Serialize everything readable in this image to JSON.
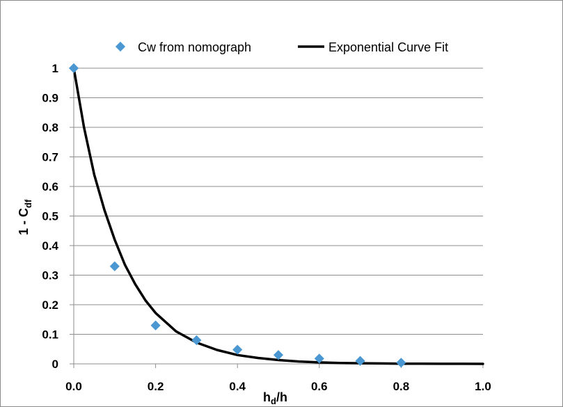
{
  "chart_data": {
    "type": "scatter",
    "title": "",
    "xlabel": {
      "main": "h",
      "sub": "d",
      "suffix": "/h"
    },
    "ylabel": {
      "main": "1 - C",
      "sub": "df"
    },
    "xlim": [
      0,
      1.0
    ],
    "ylim": [
      0,
      1
    ],
    "x_ticks": [
      "0.0",
      "0.2",
      "0.4",
      "0.6",
      "0.8",
      "1.0"
    ],
    "y_ticks": [
      "0",
      "0.1",
      "0.2",
      "0.3",
      "0.4",
      "0.5",
      "0.6",
      "0.7",
      "0.8",
      "0.9",
      "1"
    ],
    "grid": "horizontal",
    "legend": "top",
    "series": [
      {
        "name": "Cw from nomograph",
        "kind": "markers",
        "marker": "diamond",
        "color": "#4a97d2",
        "x": [
          0.0,
          0.1,
          0.2,
          0.3,
          0.4,
          0.5,
          0.6,
          0.7,
          0.8
        ],
        "y": [
          1.0,
          0.33,
          0.13,
          0.08,
          0.048,
          0.03,
          0.018,
          0.01,
          0.004
        ]
      },
      {
        "name": "Exponential Curve Fit",
        "kind": "line",
        "color": "#000000",
        "x": [
          0.0,
          0.025,
          0.05,
          0.075,
          0.1,
          0.125,
          0.15,
          0.175,
          0.2,
          0.25,
          0.3,
          0.35,
          0.4,
          0.45,
          0.5,
          0.55,
          0.6,
          0.65,
          0.7,
          0.75,
          0.8,
          0.85,
          0.9,
          0.95,
          1.0
        ],
        "y": [
          1.0,
          0.8,
          0.64,
          0.52,
          0.42,
          0.335,
          0.27,
          0.215,
          0.172,
          0.11,
          0.072,
          0.047,
          0.03,
          0.02,
          0.013,
          0.008,
          0.005,
          0.003,
          0.002,
          0.0013,
          0.0008,
          0.0005,
          0.0003,
          0.0002,
          0.0001
        ]
      }
    ]
  }
}
